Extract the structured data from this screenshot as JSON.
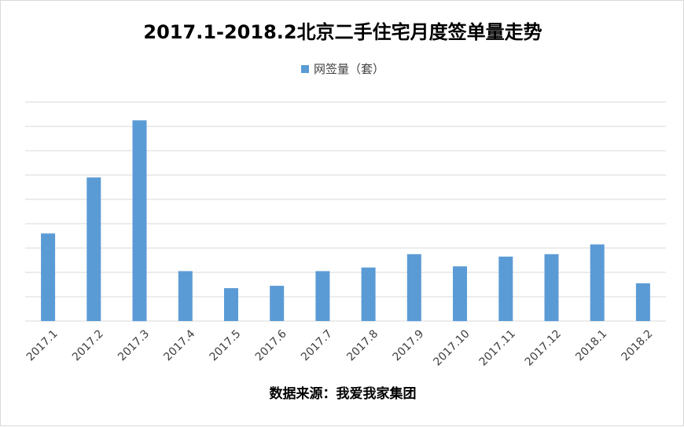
{
  "chart_data": {
    "type": "bar",
    "title": "2017.1-2018.2北京二手住宅月度签单量走势",
    "categories": [
      "2017.1",
      "2017.2",
      "2017.3",
      "2017.4",
      "2017.5",
      "2017.6",
      "2017.7",
      "2017.8",
      "2017.9",
      "2017.10",
      "2017.11",
      "2017.12",
      "2018.1",
      "2018.2"
    ],
    "series": [
      {
        "name": "网签量（套）",
        "values": [
          36,
          59,
          82.5,
          20.5,
          13.5,
          14.5,
          20.5,
          22,
          27.5,
          22.5,
          26.5,
          27.5,
          31.5,
          15.5
        ],
        "color": "#5b9bd5"
      }
    ],
    "ylim": [
      0,
      90
    ],
    "grid": true,
    "y_tick_labels_visible": false,
    "legend_position": "top",
    "xlabel": "",
    "ylabel": ""
  },
  "footer": {
    "source": "数据来源：我爱我家集团"
  },
  "colors": {
    "gridline": "#d9d9d9",
    "axis": "#d9d9d9",
    "label": "#404040"
  }
}
